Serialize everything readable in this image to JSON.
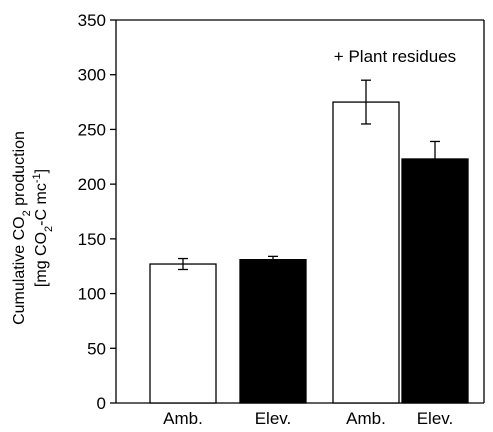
{
  "chart_data": {
    "type": "bar",
    "categories": [
      "Amb.",
      "Elev.",
      "Amb.",
      "Elev."
    ],
    "values": [
      127,
      131,
      275,
      223
    ],
    "errors": [
      5,
      3,
      20,
      16
    ],
    "bar_colors": [
      "#ffffff",
      "#000000",
      "#ffffff",
      "#000000"
    ],
    "ylabel_line1": "Cumulative CO",
    "ylabel_line1_sub": "2",
    "ylabel_line1_tail": " production",
    "ylabel_line2": "[mg CO",
    "ylabel_line2_sub": "2",
    "ylabel_line2_mid": "-C mc",
    "ylabel_line2_sup": "-1",
    "ylabel_line2_tail": "]",
    "ylim": [
      0,
      350
    ],
    "yticks": [
      0,
      50,
      100,
      150,
      200,
      250,
      300,
      350
    ],
    "annotation": "+ Plant residues",
    "grid": false
  }
}
